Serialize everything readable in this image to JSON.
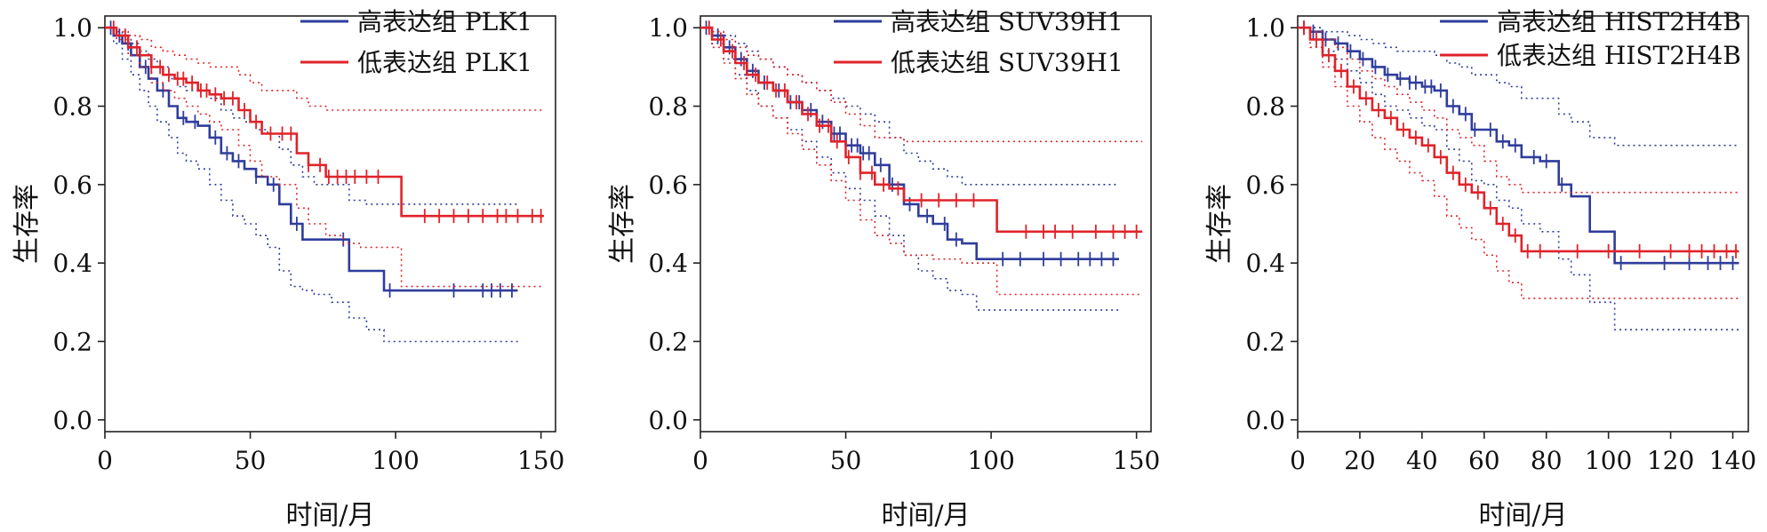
{
  "colors": {
    "high": "#2f3d9c",
    "low": "#e0232a",
    "axis": "#222222"
  },
  "chart_data": [
    {
      "type": "line",
      "panel": 1,
      "xlabel": "时间/月",
      "ylabel": "生存率",
      "xlim": [
        0,
        155
      ],
      "ylim": [
        -0.03,
        1.03
      ],
      "xticks": [
        0,
        50,
        100,
        150
      ],
      "yticks": [
        0.0,
        0.2,
        0.4,
        0.6,
        0.8,
        1.0
      ],
      "ytick_labels": [
        "0.0",
        "0.2",
        "0.4",
        "0.6",
        "0.8",
        "1.0"
      ],
      "legend_position": "top-right",
      "series": [
        {
          "name": "高表达组 PLK1",
          "color_key": "high",
          "x": [
            0,
            3,
            6,
            9,
            12,
            15,
            18,
            22,
            25,
            28,
            32,
            36,
            40,
            44,
            48,
            52,
            56,
            60,
            64,
            68,
            72,
            78,
            84,
            90,
            96,
            142
          ],
          "y": [
            1.0,
            0.98,
            0.96,
            0.93,
            0.9,
            0.87,
            0.84,
            0.8,
            0.77,
            0.76,
            0.75,
            0.72,
            0.68,
            0.66,
            0.64,
            0.62,
            0.6,
            0.55,
            0.5,
            0.46,
            0.46,
            0.46,
            0.38,
            0.38,
            0.33,
            0.33
          ],
          "lower": [
            1.0,
            0.96,
            0.92,
            0.88,
            0.84,
            0.8,
            0.76,
            0.72,
            0.68,
            0.66,
            0.64,
            0.6,
            0.56,
            0.52,
            0.5,
            0.47,
            0.44,
            0.38,
            0.34,
            0.33,
            0.32,
            0.3,
            0.26,
            0.23,
            0.2,
            0.2
          ],
          "upper": [
            1.0,
            0.99,
            0.98,
            0.96,
            0.94,
            0.92,
            0.9,
            0.87,
            0.85,
            0.84,
            0.84,
            0.82,
            0.79,
            0.77,
            0.76,
            0.74,
            0.73,
            0.69,
            0.65,
            0.62,
            0.6,
            0.6,
            0.56,
            0.55,
            0.55,
            0.55
          ],
          "censor_x": [
            2,
            5,
            8,
            14,
            20,
            27,
            31,
            38,
            42,
            46,
            52,
            58,
            66,
            82,
            98,
            120,
            130,
            133,
            136,
            140
          ]
        },
        {
          "name": "低表达组 PLK1",
          "color_key": "low",
          "x": [
            0,
            4,
            8,
            12,
            16,
            20,
            24,
            28,
            32,
            36,
            40,
            46,
            50,
            54,
            60,
            66,
            70,
            76,
            82,
            88,
            94,
            102,
            151
          ],
          "y": [
            1.0,
            0.98,
            0.95,
            0.93,
            0.9,
            0.88,
            0.87,
            0.86,
            0.84,
            0.83,
            0.82,
            0.79,
            0.76,
            0.73,
            0.73,
            0.68,
            0.65,
            0.62,
            0.62,
            0.62,
            0.62,
            0.52,
            0.52
          ],
          "lower": [
            1.0,
            0.97,
            0.93,
            0.9,
            0.86,
            0.84,
            0.82,
            0.8,
            0.78,
            0.76,
            0.74,
            0.7,
            0.66,
            0.62,
            0.6,
            0.54,
            0.5,
            0.47,
            0.45,
            0.44,
            0.44,
            0.34,
            0.34
          ],
          "upper": [
            1.0,
            0.99,
            0.98,
            0.97,
            0.95,
            0.94,
            0.93,
            0.92,
            0.91,
            0.9,
            0.9,
            0.88,
            0.86,
            0.84,
            0.84,
            0.82,
            0.8,
            0.79,
            0.79,
            0.79,
            0.79,
            0.79,
            0.79
          ],
          "censor_x": [
            3,
            7,
            11,
            16,
            19,
            22,
            25,
            27,
            30,
            33,
            35,
            38,
            41,
            44,
            48,
            52,
            57,
            61,
            64,
            70,
            74,
            77,
            80,
            83,
            86,
            90,
            94,
            110,
            115,
            120,
            125,
            130,
            135,
            138,
            142,
            147,
            150
          ]
        }
      ]
    },
    {
      "type": "line",
      "panel": 2,
      "xlabel": "时间/月",
      "ylabel": "生存率",
      "xlim": [
        0,
        155
      ],
      "ylim": [
        -0.03,
        1.03
      ],
      "xticks": [
        0,
        50,
        100,
        150
      ],
      "yticks": [
        0.0,
        0.2,
        0.4,
        0.6,
        0.8,
        1.0
      ],
      "ytick_labels": [
        "0.0",
        "0.2",
        "0.4",
        "0.6",
        "0.8",
        "1.0"
      ],
      "legend_position": "top-right",
      "series": [
        {
          "name": "高表达组 SUV39H1",
          "color_key": "high",
          "x": [
            0,
            4,
            8,
            12,
            16,
            20,
            25,
            30,
            35,
            40,
            45,
            50,
            55,
            60,
            65,
            70,
            75,
            80,
            85,
            90,
            95,
            144
          ],
          "y": [
            1.0,
            0.98,
            0.95,
            0.92,
            0.89,
            0.86,
            0.84,
            0.81,
            0.79,
            0.76,
            0.73,
            0.7,
            0.68,
            0.65,
            0.6,
            0.55,
            0.52,
            0.5,
            0.46,
            0.45,
            0.41,
            0.41
          ],
          "lower": [
            1.0,
            0.96,
            0.92,
            0.88,
            0.84,
            0.8,
            0.77,
            0.74,
            0.71,
            0.67,
            0.63,
            0.59,
            0.56,
            0.52,
            0.47,
            0.42,
            0.38,
            0.36,
            0.33,
            0.32,
            0.28,
            0.28
          ],
          "upper": [
            1.0,
            0.99,
            0.98,
            0.96,
            0.94,
            0.92,
            0.9,
            0.88,
            0.86,
            0.84,
            0.82,
            0.8,
            0.78,
            0.76,
            0.72,
            0.68,
            0.66,
            0.64,
            0.62,
            0.6,
            0.6,
            0.6
          ],
          "censor_x": [
            2,
            6,
            10,
            14,
            18,
            22,
            27,
            31,
            34,
            38,
            42,
            46,
            48,
            52,
            54,
            56,
            58,
            62,
            66,
            72,
            78,
            84,
            88,
            104,
            110,
            118,
            124,
            130,
            134,
            138,
            142
          ]
        },
        {
          "name": "低表达组 SUV39H1",
          "color_key": "low",
          "x": [
            0,
            4,
            8,
            12,
            16,
            20,
            25,
            30,
            35,
            40,
            45,
            50,
            55,
            60,
            65,
            70,
            80,
            90,
            102,
            152
          ],
          "y": [
            1.0,
            0.97,
            0.94,
            0.91,
            0.88,
            0.86,
            0.84,
            0.81,
            0.78,
            0.75,
            0.71,
            0.67,
            0.63,
            0.6,
            0.59,
            0.56,
            0.56,
            0.56,
            0.48,
            0.48
          ],
          "lower": [
            1.0,
            0.95,
            0.91,
            0.87,
            0.83,
            0.8,
            0.77,
            0.73,
            0.69,
            0.65,
            0.61,
            0.56,
            0.51,
            0.47,
            0.45,
            0.42,
            0.41,
            0.4,
            0.32,
            0.32
          ],
          "upper": [
            1.0,
            0.99,
            0.97,
            0.95,
            0.93,
            0.92,
            0.9,
            0.88,
            0.86,
            0.84,
            0.81,
            0.78,
            0.75,
            0.72,
            0.72,
            0.71,
            0.71,
            0.71,
            0.71,
            0.71
          ],
          "censor_x": [
            3,
            7,
            11,
            15,
            19,
            23,
            26,
            29,
            33,
            37,
            41,
            44,
            47,
            51,
            55,
            59,
            63,
            68,
            76,
            82,
            88,
            94,
            112,
            118,
            122,
            128,
            136,
            142,
            146,
            150
          ]
        }
      ]
    },
    {
      "type": "line",
      "panel": 3,
      "xlabel": "时间/月",
      "ylabel": "生存率",
      "xlim": [
        0,
        145
      ],
      "ylim": [
        -0.03,
        1.03
      ],
      "xticks": [
        0,
        20,
        40,
        60,
        80,
        100,
        120,
        140
      ],
      "yticks": [
        0.0,
        0.2,
        0.4,
        0.6,
        0.8,
        1.0
      ],
      "ytick_labels": [
        "0.0",
        "0.2",
        "0.4",
        "0.6",
        "0.8",
        "1.0"
      ],
      "legend_position": "top-right",
      "series": [
        {
          "name": "高表达组 HIST2H4B",
          "color_key": "high",
          "x": [
            0,
            4,
            8,
            12,
            16,
            20,
            24,
            28,
            32,
            36,
            40,
            44,
            48,
            52,
            56,
            60,
            64,
            68,
            72,
            78,
            84,
            88,
            94,
            102,
            142
          ],
          "y": [
            1.0,
            0.99,
            0.97,
            0.96,
            0.94,
            0.92,
            0.9,
            0.88,
            0.87,
            0.86,
            0.85,
            0.84,
            0.8,
            0.78,
            0.74,
            0.74,
            0.71,
            0.7,
            0.67,
            0.66,
            0.6,
            0.57,
            0.48,
            0.4,
            0.4
          ],
          "lower": [
            1.0,
            0.97,
            0.94,
            0.92,
            0.89,
            0.86,
            0.83,
            0.8,
            0.79,
            0.77,
            0.75,
            0.74,
            0.69,
            0.66,
            0.61,
            0.6,
            0.56,
            0.54,
            0.5,
            0.48,
            0.41,
            0.37,
            0.3,
            0.23,
            0.23
          ],
          "upper": [
            1.0,
            1.0,
            0.99,
            0.99,
            0.98,
            0.97,
            0.96,
            0.95,
            0.94,
            0.94,
            0.94,
            0.93,
            0.91,
            0.9,
            0.88,
            0.88,
            0.86,
            0.85,
            0.82,
            0.82,
            0.78,
            0.76,
            0.72,
            0.7,
            0.7
          ],
          "censor_x": [
            2,
            5,
            9,
            13,
            17,
            21,
            25,
            29,
            33,
            36,
            38,
            41,
            43,
            46,
            50,
            54,
            57,
            62,
            66,
            70,
            76,
            80,
            85,
            104,
            118,
            126,
            132,
            136,
            140
          ]
        },
        {
          "name": "低表达组 HIST2H4B",
          "color_key": "low",
          "x": [
            0,
            4,
            8,
            12,
            16,
            20,
            24,
            28,
            32,
            36,
            40,
            44,
            48,
            52,
            56,
            60,
            64,
            68,
            72,
            76,
            142
          ],
          "y": [
            1.0,
            0.97,
            0.93,
            0.89,
            0.85,
            0.82,
            0.79,
            0.77,
            0.74,
            0.72,
            0.7,
            0.67,
            0.63,
            0.6,
            0.58,
            0.54,
            0.5,
            0.47,
            0.43,
            0.43,
            0.43
          ],
          "lower": [
            1.0,
            0.95,
            0.9,
            0.85,
            0.8,
            0.76,
            0.72,
            0.69,
            0.66,
            0.63,
            0.61,
            0.57,
            0.52,
            0.49,
            0.46,
            0.42,
            0.38,
            0.35,
            0.31,
            0.31,
            0.31
          ],
          "upper": [
            1.0,
            0.99,
            0.97,
            0.95,
            0.92,
            0.89,
            0.87,
            0.85,
            0.83,
            0.81,
            0.79,
            0.77,
            0.74,
            0.72,
            0.7,
            0.66,
            0.62,
            0.6,
            0.58,
            0.58,
            0.58
          ],
          "censor_x": [
            2,
            6,
            10,
            14,
            18,
            22,
            26,
            30,
            34,
            38,
            42,
            46,
            50,
            54,
            58,
            62,
            66,
            70,
            74,
            78,
            90,
            100,
            110,
            120,
            126,
            130,
            134,
            138,
            141
          ]
        }
      ]
    }
  ]
}
